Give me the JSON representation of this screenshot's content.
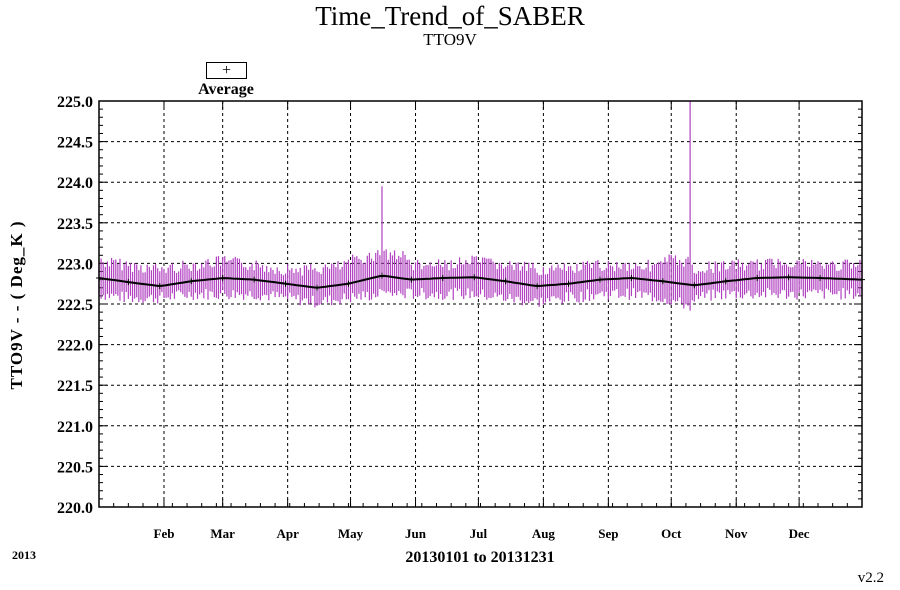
{
  "chart_data": {
    "type": "line",
    "title": "Time_Trend_of_SABER",
    "subtitle": "TTO9V",
    "ylabel": "TTO9V  - - ( Deg_K )",
    "xlabel": "20130101 to 20131231",
    "ylim": [
      220.0,
      225.0
    ],
    "yticks": [
      "220.0",
      "220.5",
      "221.0",
      "221.5",
      "222.0",
      "222.5",
      "223.0",
      "223.5",
      "224.0",
      "224.5",
      "225.0"
    ],
    "xlim_days": [
      1,
      365
    ],
    "xticks": [
      {
        "label": "Feb",
        "day": 32
      },
      {
        "label": "Mar",
        "day": 60
      },
      {
        "label": "Apr",
        "day": 91
      },
      {
        "label": "May",
        "day": 121
      },
      {
        "label": "Jun",
        "day": 152
      },
      {
        "label": "Jul",
        "day": 182
      },
      {
        "label": "Aug",
        "day": 213
      },
      {
        "label": "Sep",
        "day": 244
      },
      {
        "label": "Oct",
        "day": 274
      },
      {
        "label": "Nov",
        "day": 305
      },
      {
        "label": "Dec",
        "day": 335
      }
    ],
    "grid": true,
    "legend": {
      "marker": "+",
      "label": "Average",
      "position": "top-left"
    },
    "series": [
      {
        "name": "Average",
        "color": "#000000",
        "marker": "+",
        "x": [
          1,
          15,
          30,
          45,
          60,
          75,
          90,
          105,
          120,
          136,
          150,
          165,
          180,
          195,
          210,
          225,
          240,
          255,
          270,
          285,
          300,
          315,
          330,
          345,
          365
        ],
        "y": [
          222.82,
          222.77,
          222.72,
          222.78,
          222.82,
          222.8,
          222.75,
          222.7,
          222.75,
          222.85,
          222.8,
          222.82,
          222.83,
          222.78,
          222.72,
          222.75,
          222.8,
          222.82,
          222.78,
          222.73,
          222.78,
          222.82,
          222.83,
          222.82,
          222.8
        ]
      },
      {
        "name": "",
        "color": "#b040c0",
        "type": "daily_range",
        "x": [
          1,
          15,
          30,
          45,
          60,
          75,
          90,
          105,
          120,
          136,
          150,
          165,
          180,
          195,
          210,
          225,
          240,
          255,
          270,
          283,
          285,
          300,
          315,
          330,
          345,
          365
        ],
        "low": [
          222.55,
          222.5,
          222.5,
          222.55,
          222.55,
          222.55,
          222.5,
          222.45,
          222.5,
          222.55,
          222.55,
          222.55,
          222.55,
          222.5,
          222.45,
          222.5,
          222.55,
          222.55,
          222.5,
          222.4,
          222.5,
          222.55,
          222.55,
          222.55,
          222.55,
          222.55
        ],
        "high": [
          223.1,
          223.05,
          223.0,
          223.05,
          223.1,
          223.05,
          223.0,
          223.0,
          223.05,
          223.95,
          223.05,
          223.05,
          223.1,
          223.05,
          223.0,
          223.0,
          223.05,
          223.05,
          223.05,
          225.0,
          223.0,
          223.05,
          223.05,
          223.1,
          223.05,
          223.05
        ]
      }
    ]
  },
  "footer": {
    "year": "2013",
    "version": "v2.2"
  }
}
